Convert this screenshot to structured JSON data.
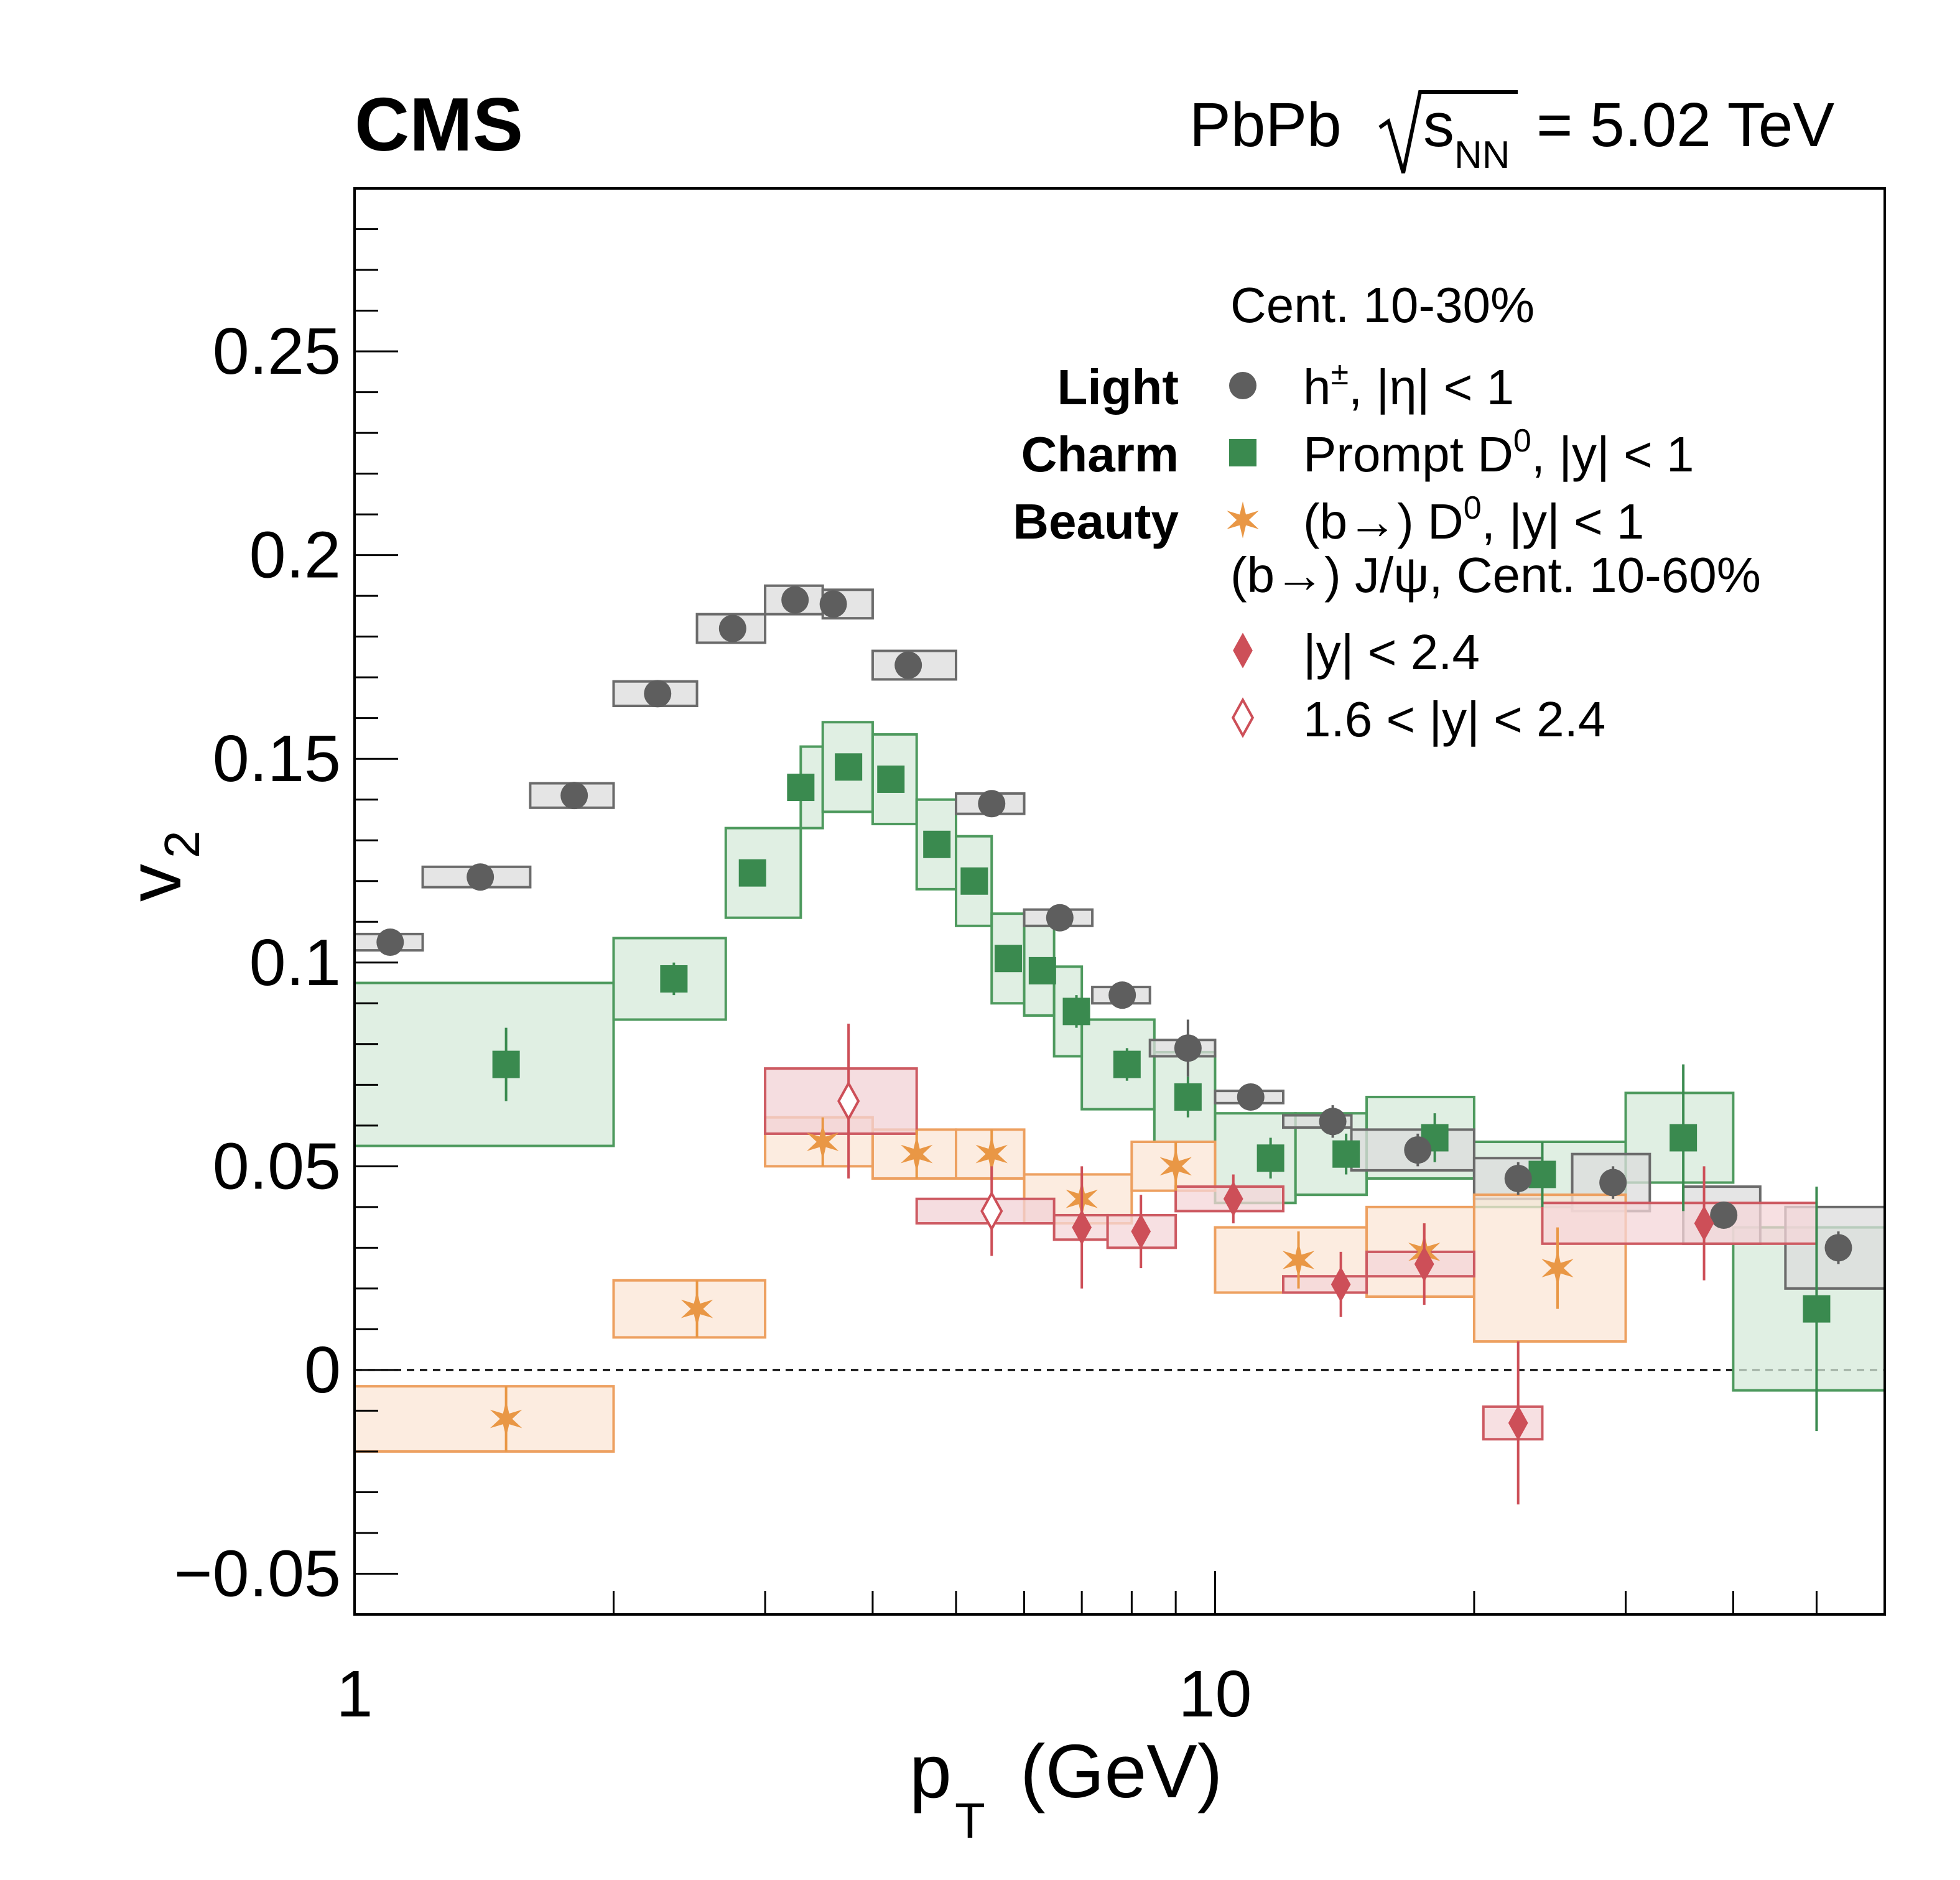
{
  "chart_data": {
    "type": "scatter",
    "experiment_label": "CMS",
    "collision_label": {
      "prefix": "PbPb",
      "sqrt_var": "s",
      "sqrt_sub": "NN",
      "suffix": "= 5.02 TeV"
    },
    "xlabel": {
      "main": "p",
      "sub": "T",
      "unit": "(GeV)"
    },
    "ylabel": {
      "main": "v",
      "sub": "2"
    },
    "xscale": "log",
    "xlim": [
      1,
      60
    ],
    "ylim": [
      -0.06,
      0.29
    ],
    "x_tick_labels": [
      {
        "value": 1,
        "label": "1"
      },
      {
        "value": 10,
        "label": "10"
      }
    ],
    "y_tick_labels": [
      {
        "value": -0.05,
        "label": "−0.05"
      },
      {
        "value": 0,
        "label": "0"
      },
      {
        "value": 0.05,
        "label": "0.05"
      },
      {
        "value": 0.1,
        "label": "0.1"
      },
      {
        "value": 0.15,
        "label": "0.15"
      },
      {
        "value": 0.2,
        "label": "0.2"
      },
      {
        "value": 0.25,
        "label": "0.25"
      }
    ],
    "zero_line": true,
    "legend": {
      "position": "top-right",
      "centrality_header": "Cent. 10-30%",
      "jpsi_header": "(b→) J/ψ, Cent. 10-60%",
      "entries": [
        {
          "category": "Light",
          "label": "h",
          "sup": "±",
          "label_rest": ", |η| < 1",
          "series": "hadrons"
        },
        {
          "category": "Charm",
          "label": "Prompt D",
          "sup": "0",
          "label_rest": ", |y| < 1",
          "series": "prompt_d0"
        },
        {
          "category": "Beauty",
          "label": "(b→) D",
          "sup": "0",
          "label_rest": ", |y| < 1",
          "series": "nonprompt_d0"
        },
        {
          "category": "",
          "label": "|y| < 2.4",
          "sup": "",
          "label_rest": "",
          "series": "jpsi_mid"
        },
        {
          "category": "",
          "label": "1.6 < |y| < 2.4",
          "sup": "",
          "label_rest": "",
          "series": "jpsi_fwd"
        }
      ]
    },
    "series": [
      {
        "name": "hadrons",
        "marker": "circle",
        "filled": true,
        "color": "#5e5e5e",
        "box_fill": "#dcdcdc",
        "box_stroke": "#6b6b6b",
        "points": [
          {
            "x": 1.1,
            "y": 0.105,
            "xlo": 1.0,
            "xhi": 1.2,
            "sys": 0.002,
            "stat": 0.001
          },
          {
            "x": 1.4,
            "y": 0.121,
            "xlo": 1.2,
            "xhi": 1.6,
            "sys": 0.0025,
            "stat": 0.001
          },
          {
            "x": 1.8,
            "y": 0.141,
            "xlo": 1.6,
            "xhi": 2.0,
            "sys": 0.003,
            "stat": 0.001
          },
          {
            "x": 2.25,
            "y": 0.166,
            "xlo": 2.0,
            "xhi": 2.5,
            "sys": 0.003,
            "stat": 0.001
          },
          {
            "x": 2.75,
            "y": 0.182,
            "xlo": 2.5,
            "xhi": 3.0,
            "sys": 0.0035,
            "stat": 0.001
          },
          {
            "x": 3.25,
            "y": 0.189,
            "xlo": 3.0,
            "xhi": 3.5,
            "sys": 0.0035,
            "stat": 0.001
          },
          {
            "x": 3.6,
            "y": 0.188,
            "xlo": 3.5,
            "xhi": 4.0,
            "sys": 0.0035,
            "stat": 0.001
          },
          {
            "x": 4.4,
            "y": 0.173,
            "xlo": 4.0,
            "xhi": 5.0,
            "sys": 0.0035,
            "stat": 0.001
          },
          {
            "x": 5.5,
            "y": 0.139,
            "xlo": 5.0,
            "xhi": 6.0,
            "sys": 0.0025,
            "stat": 0.001
          },
          {
            "x": 6.6,
            "y": 0.111,
            "xlo": 6.0,
            "xhi": 7.2,
            "sys": 0.002,
            "stat": 0.001
          },
          {
            "x": 7.8,
            "y": 0.092,
            "xlo": 7.2,
            "xhi": 8.4,
            "sys": 0.002,
            "stat": 0.002
          },
          {
            "x": 9.3,
            "y": 0.079,
            "xlo": 8.4,
            "xhi": 10.0,
            "sys": 0.002,
            "stat": 0.007
          },
          {
            "x": 11.0,
            "y": 0.067,
            "xlo": 10.0,
            "xhi": 12.0,
            "sys": 0.0015,
            "stat": 0.003
          },
          {
            "x": 13.7,
            "y": 0.061,
            "xlo": 12.0,
            "xhi": 14.4,
            "sys": 0.0015,
            "stat": 0.004
          },
          {
            "x": 17.2,
            "y": 0.054,
            "xlo": 14.4,
            "xhi": 20.0,
            "sys": 0.005,
            "stat": 0.004
          },
          {
            "x": 22.5,
            "y": 0.047,
            "xlo": 20.0,
            "xhi": 24.0,
            "sys": 0.005,
            "stat": 0.004
          },
          {
            "x": 29.0,
            "y": 0.046,
            "xlo": 26.0,
            "xhi": 32.0,
            "sys": 0.007,
            "stat": 0.004
          },
          {
            "x": 39.0,
            "y": 0.038,
            "xlo": 35.0,
            "xhi": 43.0,
            "sys": 0.007,
            "stat": 0.003
          },
          {
            "x": 53.0,
            "y": 0.03,
            "xlo": 46.0,
            "xhi": 60.0,
            "sys": 0.01,
            "stat": 0.004
          }
        ]
      },
      {
        "name": "prompt_d0",
        "marker": "square",
        "filled": true,
        "color": "#3a8a4f",
        "box_fill": "#d5ead9",
        "box_stroke": "#4e9a5e",
        "points": [
          {
            "x": 1.5,
            "y": 0.075,
            "xlo": 1.0,
            "xhi": 2.0,
            "sys": 0.02,
            "stat": 0.009
          },
          {
            "x": 2.35,
            "y": 0.096,
            "xlo": 2.0,
            "xhi": 2.7,
            "sys": 0.01,
            "stat": 0.004
          },
          {
            "x": 2.9,
            "y": 0.122,
            "xlo": 2.7,
            "xhi": 3.3,
            "sys": 0.011,
            "stat": 0.003
          },
          {
            "x": 3.3,
            "y": 0.143,
            "xlo": 3.3,
            "xhi": 3.5,
            "sys": 0.01,
            "stat": 0.002
          },
          {
            "x": 3.75,
            "y": 0.148,
            "xlo": 3.5,
            "xhi": 4.0,
            "sys": 0.011,
            "stat": 0.002
          },
          {
            "x": 4.2,
            "y": 0.145,
            "xlo": 4.0,
            "xhi": 4.5,
            "sys": 0.011,
            "stat": 0.002
          },
          {
            "x": 4.75,
            "y": 0.129,
            "xlo": 4.5,
            "xhi": 5.0,
            "sys": 0.011,
            "stat": 0.002
          },
          {
            "x": 5.25,
            "y": 0.12,
            "xlo": 5.0,
            "xhi": 5.5,
            "sys": 0.011,
            "stat": 0.003
          },
          {
            "x": 5.75,
            "y": 0.101,
            "xlo": 5.5,
            "xhi": 6.0,
            "sys": 0.011,
            "stat": 0.003
          },
          {
            "x": 6.3,
            "y": 0.098,
            "xlo": 6.0,
            "xhi": 6.5,
            "sys": 0.011,
            "stat": 0.003
          },
          {
            "x": 6.9,
            "y": 0.088,
            "xlo": 6.5,
            "xhi": 7.0,
            "sys": 0.011,
            "stat": 0.004
          },
          {
            "x": 7.9,
            "y": 0.075,
            "xlo": 7.0,
            "xhi": 8.5,
            "sys": 0.011,
            "stat": 0.004
          },
          {
            "x": 9.3,
            "y": 0.067,
            "xlo": 8.5,
            "xhi": 10.0,
            "sys": 0.011,
            "stat": 0.005
          },
          {
            "x": 11.6,
            "y": 0.052,
            "xlo": 10.0,
            "xhi": 12.4,
            "sys": 0.011,
            "stat": 0.005
          },
          {
            "x": 14.2,
            "y": 0.053,
            "xlo": 12.4,
            "xhi": 15.0,
            "sys": 0.01,
            "stat": 0.005
          },
          {
            "x": 18.0,
            "y": 0.057,
            "xlo": 15.0,
            "xhi": 20.0,
            "sys": 0.01,
            "stat": 0.006
          },
          {
            "x": 24.0,
            "y": 0.048,
            "xlo": 20.0,
            "xhi": 30.0,
            "sys": 0.008,
            "stat": 0.008
          },
          {
            "x": 35.0,
            "y": 0.057,
            "xlo": 30.0,
            "xhi": 40.0,
            "sys": 0.011,
            "stat": 0.018
          },
          {
            "x": 50.0,
            "y": 0.015,
            "xlo": 40.0,
            "xhi": 60.0,
            "sys": 0.02,
            "stat": 0.03
          }
        ]
      },
      {
        "name": "nonprompt_d0",
        "marker": "star",
        "filled": true,
        "color": "#e99745",
        "box_fill": "#fbe6d5",
        "box_stroke": "#eda060",
        "points": [
          {
            "x": 1.5,
            "y": -0.012,
            "xlo": 1.0,
            "xhi": 2.0,
            "sys": 0.008,
            "stat": 0.008
          },
          {
            "x": 2.5,
            "y": 0.015,
            "xlo": 2.0,
            "xhi": 3.0,
            "sys": 0.007,
            "stat": 0.007
          },
          {
            "x": 3.5,
            "y": 0.056,
            "xlo": 3.0,
            "xhi": 4.0,
            "sys": 0.006,
            "stat": 0.006
          },
          {
            "x": 4.5,
            "y": 0.053,
            "xlo": 4.0,
            "xhi": 5.0,
            "sys": 0.006,
            "stat": 0.006
          },
          {
            "x": 5.5,
            "y": 0.053,
            "xlo": 5.0,
            "xhi": 6.0,
            "sys": 0.006,
            "stat": 0.006
          },
          {
            "x": 7.0,
            "y": 0.042,
            "xlo": 6.0,
            "xhi": 8.0,
            "sys": 0.006,
            "stat": 0.006
          },
          {
            "x": 9.0,
            "y": 0.05,
            "xlo": 8.0,
            "xhi": 10.0,
            "sys": 0.006,
            "stat": 0.006
          },
          {
            "x": 12.5,
            "y": 0.027,
            "xlo": 10.0,
            "xhi": 15.0,
            "sys": 0.008,
            "stat": 0.007
          },
          {
            "x": 17.5,
            "y": 0.029,
            "xlo": 15.0,
            "xhi": 20.0,
            "sys": 0.011,
            "stat": 0.007
          },
          {
            "x": 25.0,
            "y": 0.025,
            "xlo": 20.0,
            "xhi": 30.0,
            "sys": 0.018,
            "stat": 0.01
          }
        ]
      },
      {
        "name": "jpsi_mid",
        "marker": "diamond",
        "filled": true,
        "color": "#cd4f58",
        "box_fill": "#f4d6d8",
        "box_stroke": "#cd5a62",
        "points": [
          {
            "x": 7.0,
            "y": 0.035,
            "xlo": 6.5,
            "xhi": 7.5,
            "sys": 0.003,
            "stat": 0.015
          },
          {
            "x": 8.2,
            "y": 0.034,
            "xlo": 7.5,
            "xhi": 9.0,
            "sys": 0.004,
            "stat": 0.009
          },
          {
            "x": 10.5,
            "y": 0.042,
            "xlo": 9.0,
            "xhi": 12.0,
            "sys": 0.003,
            "stat": 0.006
          },
          {
            "x": 14.0,
            "y": 0.021,
            "xlo": 12.0,
            "xhi": 15.0,
            "sys": 0.002,
            "stat": 0.008
          },
          {
            "x": 17.5,
            "y": 0.026,
            "xlo": 15.0,
            "xhi": 20.0,
            "sys": 0.003,
            "stat": 0.01
          },
          {
            "x": 22.5,
            "y": -0.013,
            "xlo": 20.5,
            "xhi": 24.0,
            "sys": 0.004,
            "stat": 0.02
          },
          {
            "x": 37.0,
            "y": 0.036,
            "xlo": 24.0,
            "xhi": 50.0,
            "sys": 0.005,
            "stat": 0.014
          }
        ]
      },
      {
        "name": "jpsi_fwd",
        "marker": "diamond",
        "filled": false,
        "color": "#cd4f58",
        "box_fill": "#f2d2d5",
        "box_stroke": "#cd5a62",
        "points": [
          {
            "x": 3.75,
            "y": 0.066,
            "xlo": 3.0,
            "xhi": 4.5,
            "sys": 0.008,
            "stat": 0.019
          },
          {
            "x": 5.5,
            "y": 0.039,
            "xlo": 4.5,
            "xhi": 6.5,
            "sys": 0.003,
            "stat": 0.011
          }
        ]
      }
    ]
  }
}
